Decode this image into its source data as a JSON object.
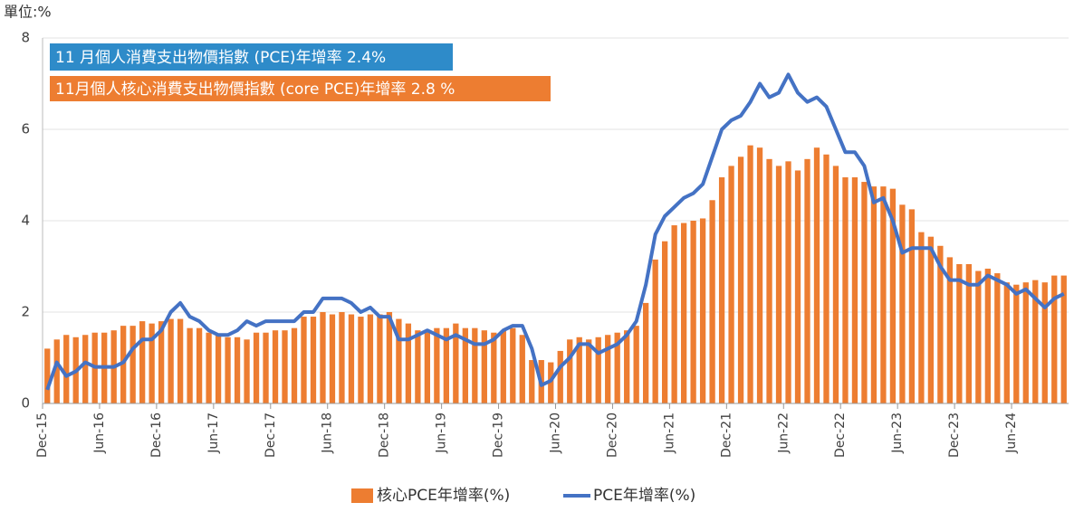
{
  "chart_data": {
    "type": "bar",
    "unit_label": "單位:%",
    "annotations": [
      {
        "text": "11 月個人消費支出物價指數 (PCE)年增率 2.4%",
        "color": "#2e8bc9"
      },
      {
        "text": "11月個人核心消費支出物價指數 (core PCE)年增率 2.8 %",
        "color": "#ed7d31"
      }
    ],
    "categories": [
      "Dec-15",
      null,
      null,
      null,
      null,
      null,
      "Jun-16",
      null,
      null,
      null,
      null,
      null,
      "Dec-16",
      null,
      null,
      null,
      null,
      null,
      "Jun-17",
      null,
      null,
      null,
      null,
      null,
      "Dec-17",
      null,
      null,
      null,
      null,
      null,
      "Jun-18",
      null,
      null,
      null,
      null,
      null,
      "Dec-18",
      null,
      null,
      null,
      null,
      null,
      "Jun-19",
      null,
      null,
      null,
      null,
      null,
      "Dec-19",
      null,
      null,
      null,
      null,
      null,
      "Jun-20",
      null,
      null,
      null,
      null,
      null,
      "Dec-20",
      null,
      null,
      null,
      null,
      null,
      "Jun-21",
      null,
      null,
      null,
      null,
      null,
      "Dec-21",
      null,
      null,
      null,
      null,
      null,
      "Jun-22",
      null,
      null,
      null,
      null,
      null,
      "Dec-22",
      null,
      null,
      null,
      null,
      null,
      "Jun-23",
      null,
      null,
      null,
      null,
      null,
      "Dec-23",
      null,
      null,
      null,
      null,
      null,
      "Jun-24",
      null,
      null,
      null,
      null,
      null
    ],
    "series": [
      {
        "name": "核心PCE年增率(%)",
        "type": "bar",
        "color": "#ed7d31",
        "values": [
          1.2,
          1.4,
          1.5,
          1.45,
          1.5,
          1.55,
          1.55,
          1.6,
          1.7,
          1.7,
          1.8,
          1.75,
          1.8,
          1.85,
          1.85,
          1.65,
          1.65,
          1.55,
          1.5,
          1.45,
          1.45,
          1.4,
          1.55,
          1.55,
          1.6,
          1.6,
          1.65,
          1.9,
          1.9,
          2.0,
          1.95,
          2.0,
          1.95,
          1.9,
          1.95,
          1.95,
          2.0,
          1.85,
          1.75,
          1.6,
          1.6,
          1.65,
          1.65,
          1.75,
          1.65,
          1.65,
          1.6,
          1.55,
          1.6,
          1.65,
          1.5,
          0.95,
          0.95,
          0.9,
          1.15,
          1.4,
          1.45,
          1.4,
          1.45,
          1.5,
          1.55,
          1.6,
          1.7,
          2.2,
          3.15,
          3.55,
          3.9,
          3.95,
          4.0,
          4.05,
          4.45,
          4.95,
          5.2,
          5.4,
          5.65,
          5.6,
          5.35,
          5.2,
          5.3,
          5.1,
          5.35,
          5.6,
          5.45,
          5.2,
          4.95,
          4.95,
          4.85,
          4.75,
          4.75,
          4.7,
          4.35,
          4.25,
          3.75,
          3.65,
          3.45,
          3.2,
          3.05,
          3.05,
          2.9,
          2.95,
          2.85,
          2.65,
          2.6,
          2.65,
          2.7,
          2.65,
          2.8,
          2.8
        ]
      },
      {
        "name": "PCE年增率(%)",
        "type": "line",
        "color": "#4472c4",
        "values": [
          0.3,
          0.9,
          0.6,
          0.7,
          0.9,
          0.8,
          0.8,
          0.8,
          0.9,
          1.2,
          1.4,
          1.4,
          1.6,
          2.0,
          2.2,
          1.9,
          1.8,
          1.6,
          1.5,
          1.5,
          1.6,
          1.8,
          1.7,
          1.8,
          1.8,
          1.8,
          1.8,
          2.0,
          2.0,
          2.3,
          2.3,
          2.3,
          2.2,
          2.0,
          2.1,
          1.9,
          1.9,
          1.4,
          1.4,
          1.5,
          1.6,
          1.5,
          1.4,
          1.5,
          1.4,
          1.3,
          1.3,
          1.4,
          1.6,
          1.7,
          1.7,
          1.2,
          0.4,
          0.5,
          0.8,
          1.0,
          1.3,
          1.3,
          1.1,
          1.2,
          1.3,
          1.5,
          1.8,
          2.6,
          3.7,
          4.1,
          4.3,
          4.5,
          4.6,
          4.8,
          5.4,
          6.0,
          6.2,
          6.3,
          6.6,
          7.0,
          6.7,
          6.8,
          7.2,
          6.8,
          6.6,
          6.7,
          6.5,
          6.0,
          5.5,
          5.5,
          5.2,
          4.4,
          4.5,
          4.0,
          3.3,
          3.4,
          3.4,
          3.4,
          3.0,
          2.7,
          2.7,
          2.6,
          2.6,
          2.8,
          2.7,
          2.6,
          2.4,
          2.5,
          2.3,
          2.1,
          2.3,
          2.4
        ]
      }
    ],
    "ylim": [
      0,
      8
    ],
    "yticks": [
      0,
      2,
      4,
      6,
      8
    ],
    "grid": true,
    "legend": "bottom"
  }
}
